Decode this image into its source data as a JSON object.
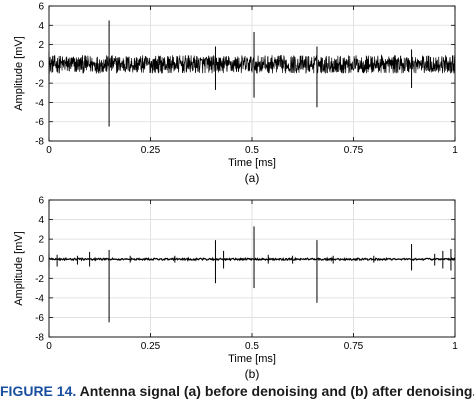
{
  "figure": {
    "caption_number": "FIGURE 14.",
    "caption_text": "Antenna signal (a) before denoising and (b) after denoising."
  },
  "chart_data": [
    {
      "type": "line",
      "panel_label": "(a)",
      "xlabel": "Time [ms]",
      "ylabel": "Amplitude [mV]",
      "xlim": [
        0,
        1
      ],
      "ylim": [
        -8,
        6
      ],
      "xticks": [
        0,
        0.25,
        0.5,
        0.75,
        1
      ],
      "xtick_labels": [
        "0",
        "0.25",
        "0.5",
        "0.75",
        "1"
      ],
      "yticks": [
        -8,
        -6,
        -4,
        -2,
        0,
        2,
        4,
        6
      ],
      "ytick_labels": [
        "-8",
        "-6",
        "-4",
        "-2",
        "0",
        "2",
        "4",
        "6"
      ],
      "grid": true,
      "series": [
        {
          "color": "#000000",
          "noise_band": [
            -1.0,
            0.9
          ],
          "spikes": [
            {
              "x": 0.0,
              "y": 1.2
            },
            {
              "x": 0.0,
              "y": -1.8
            },
            {
              "x": 0.148,
              "y": 4.5
            },
            {
              "x": 0.148,
              "y": -6.5
            },
            {
              "x": 0.41,
              "y": 1.8
            },
            {
              "x": 0.41,
              "y": -2.7
            },
            {
              "x": 0.505,
              "y": 3.3
            },
            {
              "x": 0.505,
              "y": -3.5
            },
            {
              "x": 0.66,
              "y": 1.8
            },
            {
              "x": 0.66,
              "y": -4.5
            },
            {
              "x": 0.893,
              "y": 1.5
            },
            {
              "x": 0.893,
              "y": -2.5
            }
          ]
        }
      ]
    },
    {
      "type": "line",
      "panel_label": "(b)",
      "xlabel": "Time [ms]",
      "ylabel": "Amplitude [mV]",
      "xlim": [
        0,
        1
      ],
      "ylim": [
        -8,
        6
      ],
      "xticks": [
        0,
        0.25,
        0.5,
        0.75,
        1
      ],
      "xtick_labels": [
        "0",
        "0.25",
        "0.5",
        "0.75",
        "1"
      ],
      "yticks": [
        -8,
        -6,
        -4,
        -2,
        0,
        2,
        4,
        6
      ],
      "ytick_labels": [
        "-8",
        "-6",
        "-4",
        "-2",
        "0",
        "2",
        "4",
        "6"
      ],
      "grid": true,
      "series": [
        {
          "color": "#000000",
          "baseline": [
            -0.15,
            0.05
          ],
          "spikes": [
            {
              "x": 0.0,
              "y": 0.5
            },
            {
              "x": 0.0,
              "y": -1.0
            },
            {
              "x": 0.02,
              "y": 0.4
            },
            {
              "x": 0.02,
              "y": -0.8
            },
            {
              "x": 0.07,
              "y": 0.3
            },
            {
              "x": 0.07,
              "y": -0.6
            },
            {
              "x": 0.1,
              "y": 0.7
            },
            {
              "x": 0.1,
              "y": -0.8
            },
            {
              "x": 0.148,
              "y": 0.9
            },
            {
              "x": 0.148,
              "y": -6.5
            },
            {
              "x": 0.2,
              "y": 0.3
            },
            {
              "x": 0.2,
              "y": -0.4
            },
            {
              "x": 0.31,
              "y": 0.3
            },
            {
              "x": 0.31,
              "y": -0.4
            },
            {
              "x": 0.41,
              "y": 1.9
            },
            {
              "x": 0.41,
              "y": -2.5
            },
            {
              "x": 0.43,
              "y": 0.8
            },
            {
              "x": 0.43,
              "y": -1.0
            },
            {
              "x": 0.505,
              "y": 3.3
            },
            {
              "x": 0.505,
              "y": -3.0
            },
            {
              "x": 0.54,
              "y": 0.4
            },
            {
              "x": 0.54,
              "y": -0.5
            },
            {
              "x": 0.6,
              "y": 0.3
            },
            {
              "x": 0.6,
              "y": -0.5
            },
            {
              "x": 0.66,
              "y": 1.9
            },
            {
              "x": 0.66,
              "y": -4.5
            },
            {
              "x": 0.7,
              "y": 0.3
            },
            {
              "x": 0.7,
              "y": -0.5
            },
            {
              "x": 0.8,
              "y": 0.3
            },
            {
              "x": 0.8,
              "y": -0.4
            },
            {
              "x": 0.893,
              "y": 1.5
            },
            {
              "x": 0.893,
              "y": -1.2
            },
            {
              "x": 0.95,
              "y": 0.5
            },
            {
              "x": 0.95,
              "y": -0.7
            },
            {
              "x": 0.97,
              "y": 0.8
            },
            {
              "x": 0.97,
              "y": -1.0
            },
            {
              "x": 0.99,
              "y": 1.0
            },
            {
              "x": 0.99,
              "y": -1.2
            }
          ]
        }
      ]
    }
  ]
}
